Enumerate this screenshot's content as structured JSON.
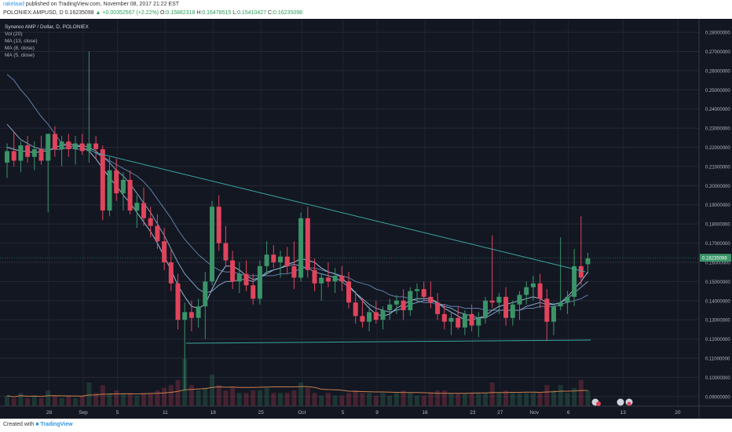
{
  "header": {
    "author": "rakelaad",
    "published_text": "published on TradingView.com, November 08, 2017 21:22 EST",
    "symbol": "POLONIEX:AMPUSD, D",
    "price": "0.16235098",
    "change": "▲ +0.00352567 (+2.22%)",
    "ohlc": {
      "o_label": "O:",
      "o": "0.15882318",
      "h_label": "H:",
      "h": "0.16478515",
      "l_label": "L:",
      "l": "0.15410427",
      "c_label": "C:",
      "c": "0.16235098"
    }
  },
  "legend": {
    "title": "Synereo AMP / Dollar, D, POLONIEX",
    "items": [
      "Vol (20)",
      "MA (13, close)",
      "MA (8, close)",
      "MA (5, close)"
    ]
  },
  "footer": {
    "created_with": "Created with",
    "brand": "TradingView"
  },
  "colors": {
    "bull": "#3a9468",
    "bear": "#e0445c",
    "ma13": "#5f7fa6",
    "ma8": "#7fa3c2",
    "ma5": "#9bbbd6",
    "trendline": "#3aa6a0",
    "vol_ma": "#c97f4c"
  },
  "chart_data": {
    "type": "candlestick",
    "title": "Synereo AMP / Dollar, D, POLONIEX",
    "x_tick_labels": [
      "28",
      "Sep",
      "5",
      "11",
      "18",
      "25",
      "Oct",
      "5",
      "9",
      "16",
      "23",
      "27",
      "Nov",
      "6",
      "13",
      "20"
    ],
    "y_tick_labels": [
      "0.28000000",
      "0.27000000",
      "0.26000000",
      "0.25000000",
      "0.24000000",
      "0.23000000",
      "0.22000000",
      "0.21000000",
      "0.20000000",
      "0.19000000",
      "0.18000000",
      "0.17000000",
      "0.16000000",
      "0.15000000",
      "0.14000000",
      "0.13000000",
      "0.12000000",
      "0.11000000",
      "0.10000000",
      "0.09000000"
    ],
    "ylim": [
      0.085,
      0.287
    ],
    "last_price": "0.16235098",
    "grid": true,
    "candles": [
      [
        0.212,
        0.222,
        0.204,
        0.218
      ],
      [
        0.218,
        0.228,
        0.21,
        0.213
      ],
      [
        0.213,
        0.223,
        0.207,
        0.221
      ],
      [
        0.221,
        0.226,
        0.212,
        0.215
      ],
      [
        0.215,
        0.223,
        0.208,
        0.219
      ],
      [
        0.219,
        0.226,
        0.211,
        0.213
      ],
      [
        0.213,
        0.225,
        0.186,
        0.227
      ],
      [
        0.227,
        0.231,
        0.215,
        0.219
      ],
      [
        0.219,
        0.226,
        0.21,
        0.223
      ],
      [
        0.223,
        0.227,
        0.215,
        0.219
      ],
      [
        0.219,
        0.226,
        0.211,
        0.222
      ],
      [
        0.222,
        0.227,
        0.216,
        0.218
      ],
      [
        0.218,
        0.27,
        0.212,
        0.222
      ],
      [
        0.222,
        0.226,
        0.214,
        0.219
      ],
      [
        0.219,
        0.221,
        0.182,
        0.187
      ],
      [
        0.187,
        0.215,
        0.184,
        0.208
      ],
      [
        0.208,
        0.214,
        0.192,
        0.196
      ],
      [
        0.196,
        0.207,
        0.187,
        0.203
      ],
      [
        0.203,
        0.208,
        0.185,
        0.187
      ],
      [
        0.187,
        0.195,
        0.178,
        0.191
      ],
      [
        0.191,
        0.199,
        0.179,
        0.183
      ],
      [
        0.183,
        0.189,
        0.173,
        0.179
      ],
      [
        0.179,
        0.185,
        0.167,
        0.171
      ],
      [
        0.171,
        0.178,
        0.156,
        0.16
      ],
      [
        0.16,
        0.167,
        0.145,
        0.149
      ],
      [
        0.149,
        0.154,
        0.125,
        0.13
      ],
      [
        0.13,
        0.139,
        0.093,
        0.134
      ],
      [
        0.134,
        0.14,
        0.124,
        0.131
      ],
      [
        0.131,
        0.141,
        0.126,
        0.137
      ],
      [
        0.137,
        0.155,
        0.12,
        0.15
      ],
      [
        0.15,
        0.192,
        0.148,
        0.189
      ],
      [
        0.189,
        0.195,
        0.166,
        0.17
      ],
      [
        0.17,
        0.179,
        0.158,
        0.161
      ],
      [
        0.161,
        0.166,
        0.146,
        0.15
      ],
      [
        0.15,
        0.16,
        0.144,
        0.154
      ],
      [
        0.154,
        0.161,
        0.145,
        0.148
      ],
      [
        0.148,
        0.154,
        0.138,
        0.141
      ],
      [
        0.141,
        0.161,
        0.138,
        0.158
      ],
      [
        0.158,
        0.171,
        0.154,
        0.164
      ],
      [
        0.164,
        0.169,
        0.157,
        0.16
      ],
      [
        0.16,
        0.166,
        0.152,
        0.163
      ],
      [
        0.163,
        0.168,
        0.154,
        0.158
      ],
      [
        0.158,
        0.171,
        0.146,
        0.152
      ],
      [
        0.152,
        0.186,
        0.15,
        0.183
      ],
      [
        0.183,
        0.189,
        0.152,
        0.156
      ],
      [
        0.156,
        0.162,
        0.145,
        0.149
      ],
      [
        0.149,
        0.154,
        0.14,
        0.152
      ],
      [
        0.152,
        0.16,
        0.147,
        0.15
      ],
      [
        0.15,
        0.157,
        0.144,
        0.153
      ],
      [
        0.153,
        0.158,
        0.145,
        0.15
      ],
      [
        0.15,
        0.155,
        0.136,
        0.139
      ],
      [
        0.139,
        0.145,
        0.128,
        0.132
      ],
      [
        0.132,
        0.141,
        0.126,
        0.129
      ],
      [
        0.129,
        0.137,
        0.124,
        0.134
      ],
      [
        0.134,
        0.14,
        0.128,
        0.13
      ],
      [
        0.13,
        0.137,
        0.125,
        0.135
      ],
      [
        0.135,
        0.141,
        0.13,
        0.138
      ],
      [
        0.138,
        0.143,
        0.133,
        0.14
      ],
      [
        0.14,
        0.146,
        0.13,
        0.135
      ],
      [
        0.135,
        0.147,
        0.132,
        0.145
      ],
      [
        0.145,
        0.149,
        0.139,
        0.146
      ],
      [
        0.146,
        0.15,
        0.14,
        0.142
      ],
      [
        0.142,
        0.15,
        0.136,
        0.139
      ],
      [
        0.139,
        0.144,
        0.13,
        0.133
      ],
      [
        0.133,
        0.138,
        0.125,
        0.129
      ],
      [
        0.129,
        0.134,
        0.122,
        0.131
      ],
      [
        0.131,
        0.137,
        0.125,
        0.126
      ],
      [
        0.126,
        0.135,
        0.122,
        0.133
      ],
      [
        0.133,
        0.138,
        0.124,
        0.127
      ],
      [
        0.127,
        0.134,
        0.121,
        0.131
      ],
      [
        0.131,
        0.142,
        0.128,
        0.14
      ],
      [
        0.14,
        0.174,
        0.136,
        0.139
      ],
      [
        0.139,
        0.144,
        0.133,
        0.142
      ],
      [
        0.142,
        0.147,
        0.127,
        0.131
      ],
      [
        0.131,
        0.14,
        0.127,
        0.138
      ],
      [
        0.138,
        0.145,
        0.13,
        0.143
      ],
      [
        0.143,
        0.15,
        0.138,
        0.147
      ],
      [
        0.147,
        0.153,
        0.14,
        0.149
      ],
      [
        0.149,
        0.154,
        0.136,
        0.141
      ],
      [
        0.141,
        0.146,
        0.119,
        0.129
      ],
      [
        0.129,
        0.139,
        0.122,
        0.137
      ],
      [
        0.137,
        0.173,
        0.135,
        0.139
      ],
      [
        0.139,
        0.145,
        0.133,
        0.142
      ],
      [
        0.142,
        0.167,
        0.137,
        0.158
      ],
      [
        0.158,
        0.184,
        0.148,
        0.152
      ],
      [
        0.159,
        0.165,
        0.154,
        0.162
      ]
    ],
    "volume": [
      4,
      3,
      5,
      3,
      4,
      3,
      6,
      4,
      3,
      4,
      3,
      4,
      9,
      5,
      8,
      5,
      6,
      5,
      5,
      4,
      5,
      5,
      6,
      7,
      8,
      10,
      18,
      8,
      6,
      7,
      12,
      8,
      6,
      7,
      5,
      5,
      6,
      6,
      7,
      5,
      5,
      5,
      6,
      9,
      7,
      5,
      4,
      5,
      4,
      4,
      5,
      6,
      5,
      5,
      4,
      5,
      4,
      5,
      6,
      5,
      4,
      4,
      5,
      6,
      6,
      5,
      5,
      5,
      5,
      5,
      5,
      9,
      5,
      6,
      5,
      5,
      5,
      5,
      5,
      8,
      6,
      8,
      5,
      7,
      10,
      6
    ],
    "ma13": [
      0.258,
      0.255,
      0.25,
      0.246,
      0.241,
      0.236,
      0.232,
      0.227,
      0.222,
      0.22,
      0.219,
      0.219,
      0.219,
      0.217,
      0.215,
      0.213,
      0.211,
      0.209,
      0.207,
      0.205,
      0.202,
      0.198,
      0.193,
      0.188,
      0.183,
      0.177,
      0.172,
      0.168,
      0.164,
      0.161,
      0.158,
      0.156,
      0.155,
      0.155,
      0.154,
      0.153,
      0.153,
      0.153,
      0.153,
      0.153,
      0.154,
      0.154,
      0.155,
      0.157,
      0.157,
      0.157,
      0.156,
      0.155,
      0.154,
      0.153,
      0.152,
      0.15,
      0.149,
      0.148,
      0.146,
      0.145,
      0.143,
      0.142,
      0.142,
      0.141,
      0.14,
      0.139,
      0.139,
      0.138,
      0.138,
      0.137,
      0.137,
      0.136,
      0.136,
      0.136,
      0.135,
      0.135,
      0.135,
      0.135,
      0.135,
      0.135,
      0.136,
      0.136,
      0.137,
      0.137,
      0.137,
      0.138,
      0.139,
      0.14,
      0.141,
      0.143
    ],
    "ma8": [
      0.232,
      0.228,
      0.224,
      0.222,
      0.22,
      0.219,
      0.219,
      0.219,
      0.219,
      0.22,
      0.221,
      0.221,
      0.22,
      0.218,
      0.215,
      0.212,
      0.208,
      0.205,
      0.201,
      0.196,
      0.191,
      0.186,
      0.18,
      0.174,
      0.167,
      0.16,
      0.154,
      0.15,
      0.146,
      0.144,
      0.145,
      0.148,
      0.15,
      0.15,
      0.151,
      0.151,
      0.15,
      0.152,
      0.155,
      0.156,
      0.157,
      0.158,
      0.159,
      0.158,
      0.157,
      0.155,
      0.154,
      0.153,
      0.152,
      0.15,
      0.147,
      0.144,
      0.141,
      0.138,
      0.136,
      0.135,
      0.134,
      0.135,
      0.136,
      0.138,
      0.139,
      0.14,
      0.14,
      0.139,
      0.137,
      0.136,
      0.134,
      0.133,
      0.132,
      0.131,
      0.131,
      0.133,
      0.135,
      0.135,
      0.135,
      0.135,
      0.137,
      0.138,
      0.139,
      0.138,
      0.138,
      0.139,
      0.141,
      0.144,
      0.147,
      0.15
    ],
    "ma5": [
      0.22,
      0.219,
      0.218,
      0.218,
      0.217,
      0.218,
      0.218,
      0.22,
      0.221,
      0.222,
      0.221,
      0.22,
      0.218,
      0.214,
      0.209,
      0.204,
      0.2,
      0.195,
      0.191,
      0.186,
      0.181,
      0.176,
      0.17,
      0.163,
      0.156,
      0.148,
      0.142,
      0.137,
      0.136,
      0.138,
      0.146,
      0.153,
      0.158,
      0.158,
      0.156,
      0.153,
      0.151,
      0.152,
      0.154,
      0.156,
      0.157,
      0.159,
      0.16,
      0.162,
      0.161,
      0.16,
      0.157,
      0.155,
      0.154,
      0.152,
      0.148,
      0.144,
      0.14,
      0.136,
      0.133,
      0.132,
      0.133,
      0.136,
      0.138,
      0.14,
      0.141,
      0.141,
      0.141,
      0.139,
      0.136,
      0.134,
      0.132,
      0.13,
      0.13,
      0.131,
      0.132,
      0.135,
      0.137,
      0.138,
      0.139,
      0.14,
      0.141,
      0.142,
      0.141,
      0.139,
      0.138,
      0.139,
      0.142,
      0.146,
      0.15,
      0.155
    ]
  }
}
